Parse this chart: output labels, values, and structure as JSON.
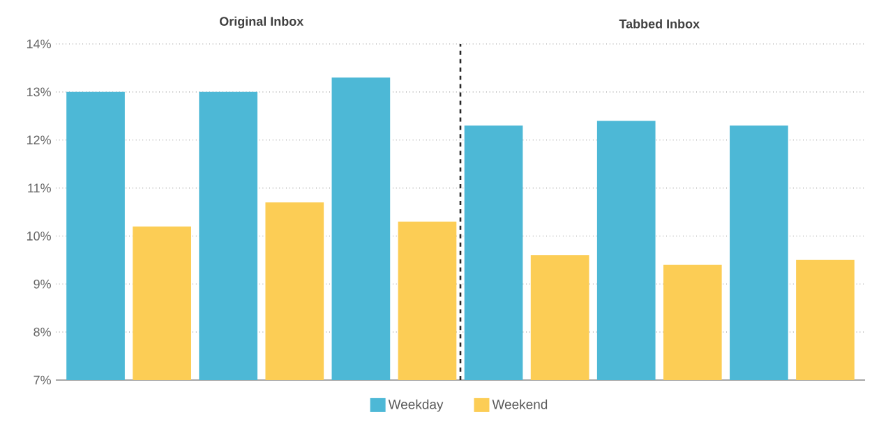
{
  "chart_data": {
    "type": "bar",
    "categories": [
      null,
      null,
      null,
      null,
      null,
      null
    ],
    "series": [
      {
        "name": "Weekday",
        "color": "#4db8d6",
        "values": [
          13.0,
          13.0,
          13.3,
          12.3,
          12.4,
          12.3
        ]
      },
      {
        "name": "Weekend",
        "color": "#fccd55",
        "values": [
          10.2,
          10.7,
          10.3,
          9.6,
          9.4,
          9.5
        ]
      }
    ],
    "ylim": [
      7,
      14
    ],
    "yticks": [
      {
        "value": 7,
        "label": "7%"
      },
      {
        "value": 8,
        "label": "8%"
      },
      {
        "value": 9,
        "label": "9%"
      },
      {
        "value": 10,
        "label": "10%"
      },
      {
        "value": 11,
        "label": "11%"
      },
      {
        "value": 12,
        "label": "12%"
      },
      {
        "value": 13,
        "label": "13%"
      },
      {
        "value": 14,
        "label": "14%"
      }
    ],
    "annotations": [
      "Original Inbox",
      "Tabbed Inbox"
    ],
    "grid": "y",
    "legend": "bottom"
  }
}
